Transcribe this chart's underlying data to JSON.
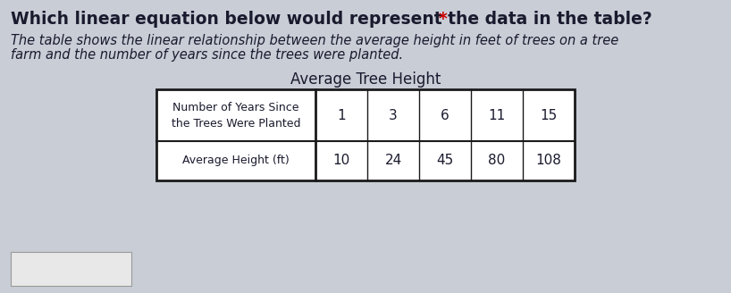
{
  "title_text": "Which linear equation below would represent the data in the table? ",
  "title_asterisk": "*",
  "subtitle_line1": "The table shows the linear relationship between the average height in feet of trees on a tree",
  "subtitle_line2": "farm and the number of years since the trees were planted.",
  "table_title": "Average Tree Height",
  "row1_header": "Number of Years Since\nthe Trees Were Planted",
  "row2_header": "Average Height (ft)",
  "years": [
    "1",
    "3",
    "6",
    "11",
    "15"
  ],
  "heights": [
    "10",
    "24",
    "45",
    "80",
    "108"
  ],
  "bg_color": "#c8cdd6",
  "table_bg": "#ffffff",
  "border_color": "#1a1a1a",
  "title_color": "#1a1a2e",
  "asterisk_color": "#cc0000",
  "subtitle_color": "#1a1a2e",
  "title_fontsize": 13.5,
  "subtitle_fontsize": 10.5,
  "table_title_fontsize": 12,
  "header_fontsize": 9.0,
  "data_fontsize": 11
}
